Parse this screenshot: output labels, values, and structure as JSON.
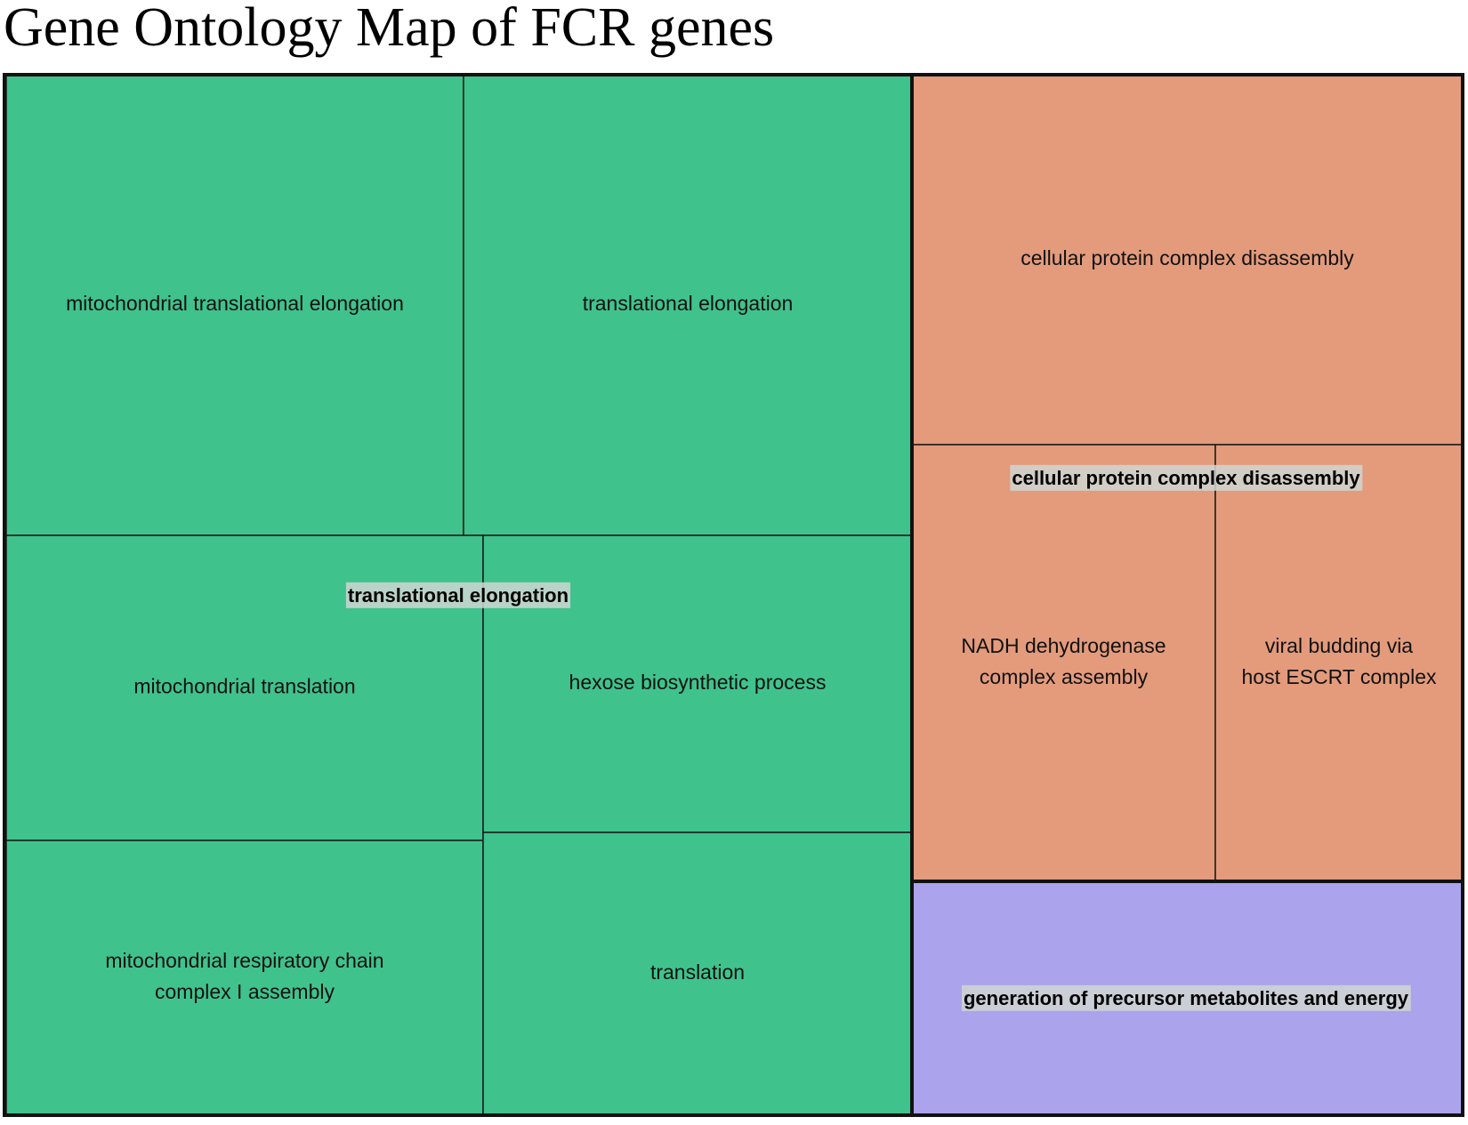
{
  "title": "Gene Ontology Map of FCR genes",
  "colors": {
    "translational_elongation": "#40c28d",
    "cellular_protein_complex_disassembly": "#e39b7c",
    "generation_of_precursor_metabolites_and_energy": "#aba3eb",
    "border": "#111111",
    "group_label_bg": "#cfd6d2"
  },
  "chart_data": {
    "type": "treemap",
    "title": "Gene Ontology Map of FCR genes",
    "groups": [
      {
        "name": "translational elongation",
        "color_key": "translational_elongation",
        "terms": [
          "mitochondrial translational elongation",
          "translational elongation",
          "mitochondrial translation",
          "hexose biosynthetic process",
          "mitochondrial respiratory chain complex I assembly",
          "translation"
        ]
      },
      {
        "name": "cellular protein complex disassembly",
        "color_key": "cellular_protein_complex_disassembly",
        "terms": [
          "cellular protein complex disassembly",
          "NADH dehydrogenase complex assembly",
          "viral budding via host ESCRT complex"
        ]
      },
      {
        "name": "generation of precursor metabolites and energy",
        "color_key": "generation_of_precursor_metabolites_and_energy",
        "terms": [
          "generation of precursor metabolites and energy"
        ]
      }
    ]
  }
}
